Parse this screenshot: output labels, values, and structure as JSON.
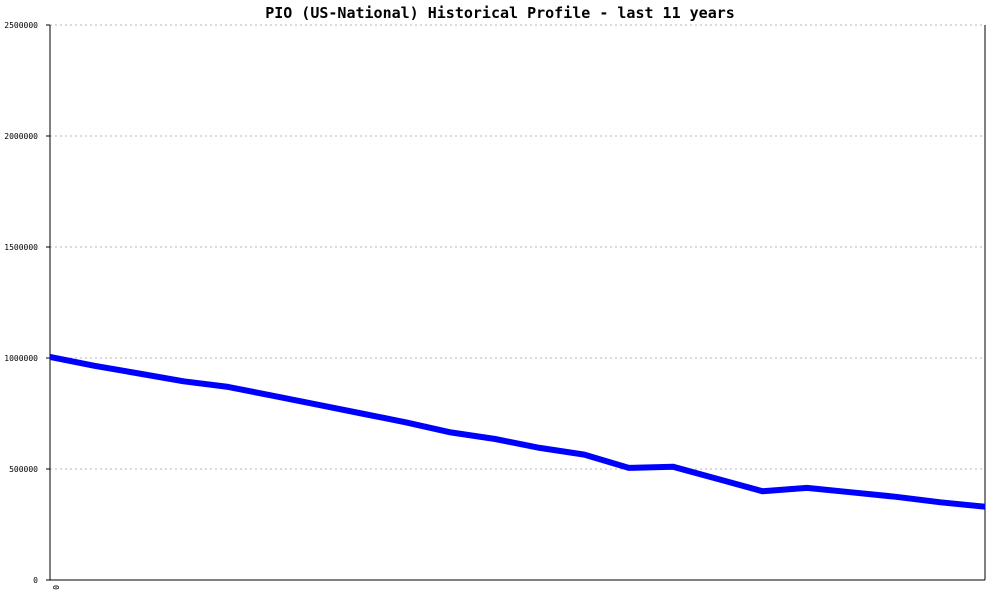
{
  "chart_data": {
    "type": "line",
    "title": "PIO (US-National) Historical Profile - last 11 years",
    "xlabel": "",
    "ylabel": "",
    "ylim": [
      0,
      2500000
    ],
    "yticks": [
      0,
      500000,
      1000000,
      1500000,
      2000000,
      2500000
    ],
    "ytick_labels": [
      "0",
      "500000",
      "1000000",
      "1500000",
      "2000000",
      "2500000"
    ],
    "xtick_labels": [
      "0"
    ],
    "grid": true,
    "series": [
      {
        "color": "#0000ff",
        "x": [
          0,
          0.1,
          0.2,
          0.3,
          0.4,
          0.5,
          0.6,
          0.7,
          0.8,
          0.9,
          1.0,
          1.1,
          1.2,
          1.3,
          1.4,
          1.5,
          1.6,
          1.7,
          1.8,
          1.9,
          2.0,
          2.1
        ],
        "values": [
          1005000,
          965000,
          930000,
          895000,
          870000,
          830000,
          790000,
          750000,
          710000,
          665000,
          635000,
          595000,
          565000,
          505000,
          510000,
          455000,
          400000,
          415000,
          395000,
          375000,
          350000,
          330000
        ]
      }
    ]
  }
}
